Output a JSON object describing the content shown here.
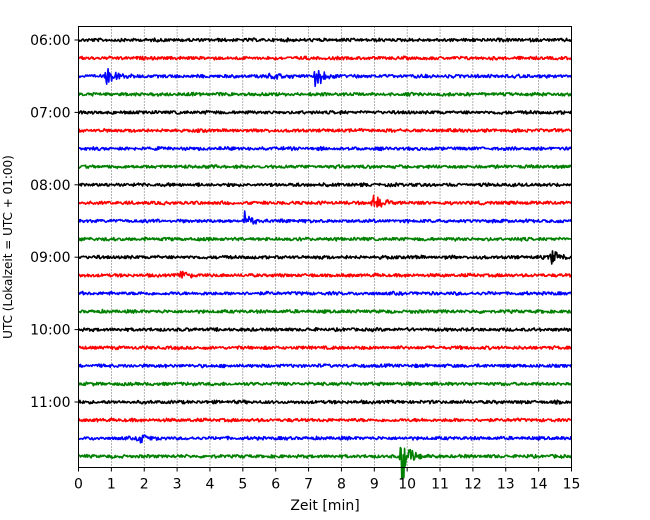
{
  "chart_data": {
    "type": "line",
    "xlabel": "Zeit  [min]",
    "ylabel": "UTC (Lokalzeit = UTC + 01:00)",
    "xlim": [
      0,
      15
    ],
    "x_ticks": [
      "0",
      "1",
      "2",
      "3",
      "4",
      "5",
      "6",
      "7",
      "8",
      "9",
      "10",
      "11",
      "12",
      "13",
      "14",
      "15"
    ],
    "y_tick_labels": [
      "06:00",
      "07:00",
      "08:00",
      "09:00",
      "10:00",
      "11:00"
    ],
    "grid": "vertical dotted at each minute",
    "trace_interval_minutes": 15,
    "trace_colors": [
      "#000000",
      "#ff0000",
      "#0000ff",
      "#008000"
    ],
    "traces": [
      {
        "start": "06:00",
        "color": "#000000"
      },
      {
        "start": "06:15",
        "color": "#ff0000"
      },
      {
        "start": "06:30",
        "color": "#0000ff",
        "events": [
          {
            "t": 0.85,
            "amp": 1.0
          },
          {
            "t": 5.8,
            "amp": 0.4
          },
          {
            "t": 7.2,
            "amp": 0.9
          }
        ]
      },
      {
        "start": "06:45",
        "color": "#008000"
      },
      {
        "start": "07:00",
        "color": "#000000"
      },
      {
        "start": "07:15",
        "color": "#ff0000"
      },
      {
        "start": "07:30",
        "color": "#0000ff"
      },
      {
        "start": "07:45",
        "color": "#008000"
      },
      {
        "start": "08:00",
        "color": "#000000"
      },
      {
        "start": "08:15",
        "color": "#ff0000",
        "events": [
          {
            "t": 8.95,
            "amp": 0.8
          }
        ]
      },
      {
        "start": "08:30",
        "color": "#0000ff",
        "events": [
          {
            "t": 5.05,
            "amp": 0.6
          }
        ]
      },
      {
        "start": "08:45",
        "color": "#008000"
      },
      {
        "start": "09:00",
        "color": "#000000",
        "events": [
          {
            "t": 14.4,
            "amp": 0.5
          }
        ]
      },
      {
        "start": "09:15",
        "color": "#ff0000",
        "events": [
          {
            "t": 3.1,
            "amp": 0.4
          }
        ]
      },
      {
        "start": "09:30",
        "color": "#0000ff"
      },
      {
        "start": "09:45",
        "color": "#008000"
      },
      {
        "start": "10:00",
        "color": "#000000"
      },
      {
        "start": "10:15",
        "color": "#ff0000"
      },
      {
        "start": "10:30",
        "color": "#0000ff"
      },
      {
        "start": "10:45",
        "color": "#008000"
      },
      {
        "start": "11:00",
        "color": "#000000"
      },
      {
        "start": "11:15",
        "color": "#ff0000"
      },
      {
        "start": "11:30",
        "color": "#0000ff",
        "events": [
          {
            "t": 1.8,
            "amp": 0.45
          }
        ]
      },
      {
        "start": "11:45",
        "color": "#008000",
        "events": [
          {
            "t": 9.8,
            "amp": 2.2
          }
        ]
      }
    ]
  }
}
